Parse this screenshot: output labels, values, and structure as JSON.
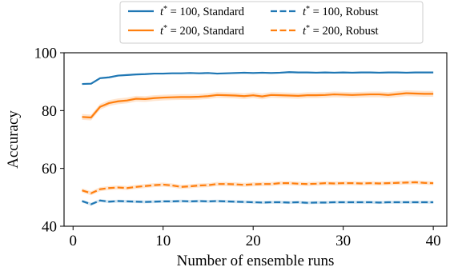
{
  "chart_data": {
    "type": "line",
    "xlabel": "Number of ensemble runs",
    "ylabel": "Accuracy",
    "xlim": [
      -1,
      41.5
    ],
    "ylim": [
      40,
      100
    ],
    "xticks": [
      0,
      10,
      20,
      30,
      40
    ],
    "yticks": [
      40,
      60,
      80,
      100
    ],
    "grid": false,
    "legend_position": "top-center",
    "x": [
      1,
      2,
      3,
      4,
      5,
      6,
      7,
      8,
      9,
      10,
      11,
      12,
      13,
      14,
      15,
      16,
      17,
      18,
      19,
      20,
      21,
      22,
      23,
      24,
      25,
      26,
      27,
      28,
      29,
      30,
      31,
      32,
      33,
      34,
      35,
      36,
      37,
      38,
      39,
      40
    ],
    "series": [
      {
        "name": "t* = 100, Standard",
        "legend_parts": {
          "var": "t",
          "sup": "*",
          "rest": " = 100, Standard"
        },
        "color": "#1f77b4",
        "dash": "solid",
        "band": 0.3,
        "values": [
          89.2,
          89.3,
          91.2,
          91.5,
          92.1,
          92.3,
          92.5,
          92.6,
          92.8,
          92.8,
          92.9,
          92.9,
          93.0,
          92.9,
          93.0,
          92.8,
          92.9,
          93.0,
          93.1,
          93.0,
          93.1,
          93.0,
          93.1,
          93.3,
          93.2,
          93.2,
          93.1,
          93.2,
          93.1,
          93.2,
          93.1,
          93.2,
          93.2,
          93.1,
          93.2,
          93.2,
          93.1,
          93.2,
          93.2,
          93.2
        ]
      },
      {
        "name": "t* = 200, Standard",
        "legend_parts": {
          "var": "t",
          "sup": "*",
          "rest": " = 200, Standard"
        },
        "color": "#ff7f0e",
        "dash": "solid",
        "band": 1.0,
        "values": [
          77.8,
          77.6,
          81.3,
          82.6,
          83.2,
          83.5,
          84.1,
          84.0,
          84.3,
          84.5,
          84.6,
          84.7,
          84.7,
          84.8,
          85.0,
          85.4,
          85.3,
          85.2,
          85.0,
          85.3,
          84.9,
          85.4,
          85.3,
          85.2,
          85.1,
          85.3,
          85.3,
          85.4,
          85.6,
          85.5,
          85.4,
          85.5,
          85.6,
          85.6,
          85.4,
          85.7,
          86.0,
          85.9,
          85.8,
          85.8
        ]
      },
      {
        "name": "t* = 100, Robust",
        "legend_parts": {
          "var": "t",
          "sup": "*",
          "rest": " = 100, Robust"
        },
        "color": "#1f77b4",
        "dash": "dashed",
        "band": 0.5,
        "values": [
          48.7,
          47.6,
          48.9,
          48.5,
          48.7,
          48.6,
          48.5,
          48.4,
          48.5,
          48.6,
          48.6,
          48.7,
          48.6,
          48.7,
          48.6,
          48.7,
          48.6,
          48.5,
          48.4,
          48.3,
          48.2,
          48.3,
          48.3,
          48.2,
          48.3,
          48.1,
          48.2,
          48.2,
          48.3,
          48.3,
          48.3,
          48.3,
          48.3,
          48.2,
          48.3,
          48.3,
          48.3,
          48.3,
          48.3,
          48.3
        ]
      },
      {
        "name": "t* = 200, Robust",
        "legend_parts": {
          "var": "t",
          "sup": "*",
          "rest": " = 200, Robust"
        },
        "color": "#ff7f0e",
        "dash": "dashed",
        "band": 0.7,
        "values": [
          52.4,
          51.4,
          52.8,
          53.2,
          53.4,
          53.2,
          53.6,
          53.9,
          54.2,
          54.4,
          54.1,
          53.6,
          53.8,
          54.1,
          54.2,
          54.6,
          54.6,
          54.5,
          54.3,
          54.5,
          54.6,
          54.6,
          54.9,
          54.9,
          54.7,
          54.6,
          54.7,
          54.9,
          54.8,
          54.9,
          54.9,
          54.8,
          54.9,
          54.8,
          54.9,
          55.0,
          55.1,
          55.2,
          55.0,
          54.9
        ]
      }
    ]
  }
}
